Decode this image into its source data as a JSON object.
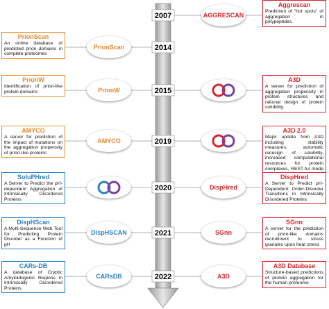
{
  "rows": [
    {
      "year": "2007",
      "right": {
        "title": "Aggrescan",
        "logo": "AGGRESCAN",
        "color": "#d9232a",
        "description": "Prediction of \"hot spots\" of aggregation in polypeptides."
      }
    },
    {
      "year": "2014",
      "left": {
        "title": "PrionScan",
        "logo": "PrionScan",
        "color": "#e8892b",
        "description": "An online database of predicted prion domains in complete proteomes"
      }
    },
    {
      "year": "2015",
      "left": {
        "title": "PrionW",
        "logo": "PrionW",
        "color": "#e8892b",
        "description": "Identification of prion-like protein domains"
      },
      "right": {
        "title": "A3D",
        "logo": "",
        "color": "#d9232a",
        "description": "A server for prediction of aggregation propensity in protein structures and rational design of protein solubility."
      }
    },
    {
      "year": "2019",
      "left": {
        "title": "AMYCO",
        "logo": "AMYCO",
        "color": "#e8892b",
        "description": "A server for prediction of the impact of mutations on the aggregation propensity of prion-like proteins"
      },
      "right": {
        "title": "A3D 2.0",
        "logo": "",
        "color": "#d9232a",
        "description": "Major update from A3D including stability measures, automatic recesign of solubility, increased computational resources for protein complexes, REST-ful mode and a standalone version."
      }
    },
    {
      "year": "2020",
      "left": {
        "title": "SoluPHred",
        "logo": "",
        "color": "#2d7fc1",
        "description": "A Server to Predict the pH-dependent Aggregation of Intrinsically Disordered Proteins"
      },
      "right": {
        "title": "DispHred",
        "logo": "DispHred",
        "color": "#d9232a",
        "description": "A Server to Predict pH-Dependent Order-Disorder Transitions in Intrinsically Disordered Proteins"
      }
    },
    {
      "year": "2021",
      "left": {
        "title": "DispHScan",
        "logo": "DispHSCAN",
        "color": "#2d7fc1",
        "description": "A Multi-Sequence Web Tool for Predicting Protein Disorder as a Function of pH"
      },
      "right": {
        "title": "SGnn",
        "logo": "SGnn",
        "color": "#d9232a",
        "description": "A server for the prediction of prion-like domains recruitment to stress granules upon heat stress"
      }
    },
    {
      "year": "2022",
      "left": {
        "title": "CARs-DB",
        "logo": "CARsDB",
        "color": "#2d7fc1",
        "description": "A database of Cryptic Amyloidogenic Regions in Intrinsically Disordered Proteins"
      },
      "right": {
        "title": "A3D Database",
        "logo": "A3D",
        "color": "#d9232a",
        "description": "Structure-based predictions of protein aggregation for the human proteome"
      }
    }
  ]
}
